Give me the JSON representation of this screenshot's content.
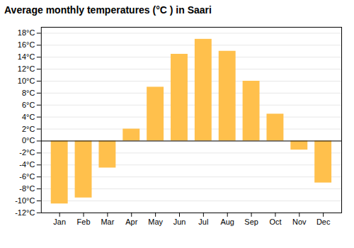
{
  "chart_data": {
    "type": "bar",
    "title": "Average monthly temperatures (°C ) in Saari",
    "categories": [
      "Jan",
      "Feb",
      "Mar",
      "Apr",
      "May",
      "Jun",
      "Jul",
      "Aug",
      "Sep",
      "Oct",
      "Nov",
      "Dec"
    ],
    "values": [
      -10.5,
      -9.5,
      -4.5,
      2.0,
      9.0,
      14.5,
      17.0,
      15.0,
      10.0,
      4.5,
      -1.5,
      -7.0
    ],
    "color": "#FFC04C",
    "ylim": [
      -12,
      19
    ],
    "yticks": [
      {
        "value": -12,
        "label": "-12°C"
      },
      {
        "value": -10,
        "label": "-10°C"
      },
      {
        "value": -8,
        "label": "-8°C"
      },
      {
        "value": -6,
        "label": "-6°C"
      },
      {
        "value": -4,
        "label": "-4°C"
      },
      {
        "value": -2,
        "label": "-2°C"
      },
      {
        "value": 0,
        "label": "0°C"
      },
      {
        "value": 2,
        "label": "2°C"
      },
      {
        "value": 4,
        "label": "4°C"
      },
      {
        "value": 6,
        "label": "6°C"
      },
      {
        "value": 8,
        "label": "8°C"
      },
      {
        "value": 10,
        "label": "10°C"
      },
      {
        "value": 12,
        "label": "12°C"
      },
      {
        "value": 14,
        "label": "14°C"
      },
      {
        "value": 16,
        "label": "16°C"
      },
      {
        "value": 18,
        "label": "18°C"
      }
    ],
    "grid": true
  }
}
